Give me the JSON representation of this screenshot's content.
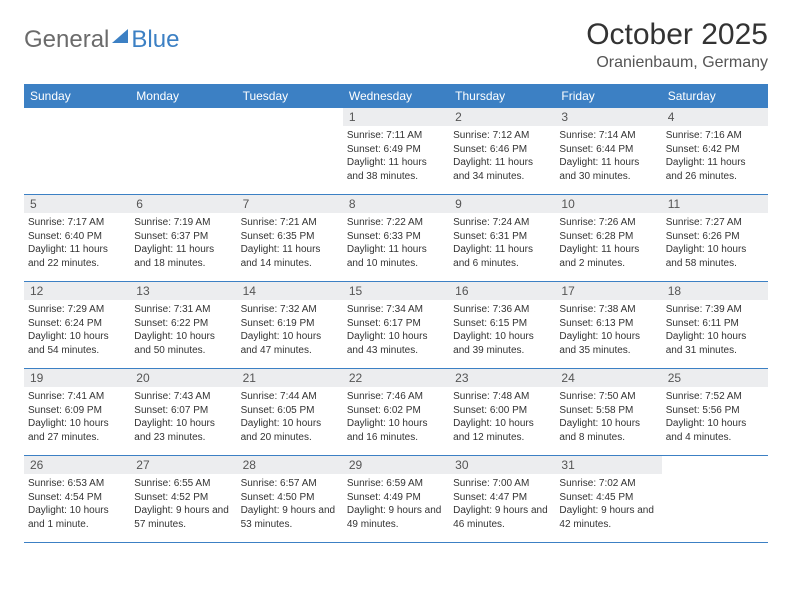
{
  "brand": {
    "part1": "General",
    "part2": "Blue"
  },
  "title": "October 2025",
  "subtitle": "Oranienbaum, Germany",
  "colors": {
    "primary": "#3c80c4",
    "dayHeaderBg": "#ecedef",
    "text": "#333333",
    "logoGray": "#6b6b6b"
  },
  "typography": {
    "title_fontsize": 30,
    "subtitle_fontsize": 16,
    "weekday_fontsize": 12,
    "daynum_fontsize": 12,
    "body_fontsize": 10
  },
  "layout": {
    "columns": 7,
    "firstDayOffset": 3
  },
  "weekdays": [
    "Sunday",
    "Monday",
    "Tuesday",
    "Wednesday",
    "Thursday",
    "Friday",
    "Saturday"
  ],
  "days": [
    {
      "n": "1",
      "sr": "Sunrise: 7:11 AM",
      "ss": "Sunset: 6:49 PM",
      "dl": "Daylight: 11 hours and 38 minutes."
    },
    {
      "n": "2",
      "sr": "Sunrise: 7:12 AM",
      "ss": "Sunset: 6:46 PM",
      "dl": "Daylight: 11 hours and 34 minutes."
    },
    {
      "n": "3",
      "sr": "Sunrise: 7:14 AM",
      "ss": "Sunset: 6:44 PM",
      "dl": "Daylight: 11 hours and 30 minutes."
    },
    {
      "n": "4",
      "sr": "Sunrise: 7:16 AM",
      "ss": "Sunset: 6:42 PM",
      "dl": "Daylight: 11 hours and 26 minutes."
    },
    {
      "n": "5",
      "sr": "Sunrise: 7:17 AM",
      "ss": "Sunset: 6:40 PM",
      "dl": "Daylight: 11 hours and 22 minutes."
    },
    {
      "n": "6",
      "sr": "Sunrise: 7:19 AM",
      "ss": "Sunset: 6:37 PM",
      "dl": "Daylight: 11 hours and 18 minutes."
    },
    {
      "n": "7",
      "sr": "Sunrise: 7:21 AM",
      "ss": "Sunset: 6:35 PM",
      "dl": "Daylight: 11 hours and 14 minutes."
    },
    {
      "n": "8",
      "sr": "Sunrise: 7:22 AM",
      "ss": "Sunset: 6:33 PM",
      "dl": "Daylight: 11 hours and 10 minutes."
    },
    {
      "n": "9",
      "sr": "Sunrise: 7:24 AM",
      "ss": "Sunset: 6:31 PM",
      "dl": "Daylight: 11 hours and 6 minutes."
    },
    {
      "n": "10",
      "sr": "Sunrise: 7:26 AM",
      "ss": "Sunset: 6:28 PM",
      "dl": "Daylight: 11 hours and 2 minutes."
    },
    {
      "n": "11",
      "sr": "Sunrise: 7:27 AM",
      "ss": "Sunset: 6:26 PM",
      "dl": "Daylight: 10 hours and 58 minutes."
    },
    {
      "n": "12",
      "sr": "Sunrise: 7:29 AM",
      "ss": "Sunset: 6:24 PM",
      "dl": "Daylight: 10 hours and 54 minutes."
    },
    {
      "n": "13",
      "sr": "Sunrise: 7:31 AM",
      "ss": "Sunset: 6:22 PM",
      "dl": "Daylight: 10 hours and 50 minutes."
    },
    {
      "n": "14",
      "sr": "Sunrise: 7:32 AM",
      "ss": "Sunset: 6:19 PM",
      "dl": "Daylight: 10 hours and 47 minutes."
    },
    {
      "n": "15",
      "sr": "Sunrise: 7:34 AM",
      "ss": "Sunset: 6:17 PM",
      "dl": "Daylight: 10 hours and 43 minutes."
    },
    {
      "n": "16",
      "sr": "Sunrise: 7:36 AM",
      "ss": "Sunset: 6:15 PM",
      "dl": "Daylight: 10 hours and 39 minutes."
    },
    {
      "n": "17",
      "sr": "Sunrise: 7:38 AM",
      "ss": "Sunset: 6:13 PM",
      "dl": "Daylight: 10 hours and 35 minutes."
    },
    {
      "n": "18",
      "sr": "Sunrise: 7:39 AM",
      "ss": "Sunset: 6:11 PM",
      "dl": "Daylight: 10 hours and 31 minutes."
    },
    {
      "n": "19",
      "sr": "Sunrise: 7:41 AM",
      "ss": "Sunset: 6:09 PM",
      "dl": "Daylight: 10 hours and 27 minutes."
    },
    {
      "n": "20",
      "sr": "Sunrise: 7:43 AM",
      "ss": "Sunset: 6:07 PM",
      "dl": "Daylight: 10 hours and 23 minutes."
    },
    {
      "n": "21",
      "sr": "Sunrise: 7:44 AM",
      "ss": "Sunset: 6:05 PM",
      "dl": "Daylight: 10 hours and 20 minutes."
    },
    {
      "n": "22",
      "sr": "Sunrise: 7:46 AM",
      "ss": "Sunset: 6:02 PM",
      "dl": "Daylight: 10 hours and 16 minutes."
    },
    {
      "n": "23",
      "sr": "Sunrise: 7:48 AM",
      "ss": "Sunset: 6:00 PM",
      "dl": "Daylight: 10 hours and 12 minutes."
    },
    {
      "n": "24",
      "sr": "Sunrise: 7:50 AM",
      "ss": "Sunset: 5:58 PM",
      "dl": "Daylight: 10 hours and 8 minutes."
    },
    {
      "n": "25",
      "sr": "Sunrise: 7:52 AM",
      "ss": "Sunset: 5:56 PM",
      "dl": "Daylight: 10 hours and 4 minutes."
    },
    {
      "n": "26",
      "sr": "Sunrise: 6:53 AM",
      "ss": "Sunset: 4:54 PM",
      "dl": "Daylight: 10 hours and 1 minute."
    },
    {
      "n": "27",
      "sr": "Sunrise: 6:55 AM",
      "ss": "Sunset: 4:52 PM",
      "dl": "Daylight: 9 hours and 57 minutes."
    },
    {
      "n": "28",
      "sr": "Sunrise: 6:57 AM",
      "ss": "Sunset: 4:50 PM",
      "dl": "Daylight: 9 hours and 53 minutes."
    },
    {
      "n": "29",
      "sr": "Sunrise: 6:59 AM",
      "ss": "Sunset: 4:49 PM",
      "dl": "Daylight: 9 hours and 49 minutes."
    },
    {
      "n": "30",
      "sr": "Sunrise: 7:00 AM",
      "ss": "Sunset: 4:47 PM",
      "dl": "Daylight: 9 hours and 46 minutes."
    },
    {
      "n": "31",
      "sr": "Sunrise: 7:02 AM",
      "ss": "Sunset: 4:45 PM",
      "dl": "Daylight: 9 hours and 42 minutes."
    }
  ]
}
